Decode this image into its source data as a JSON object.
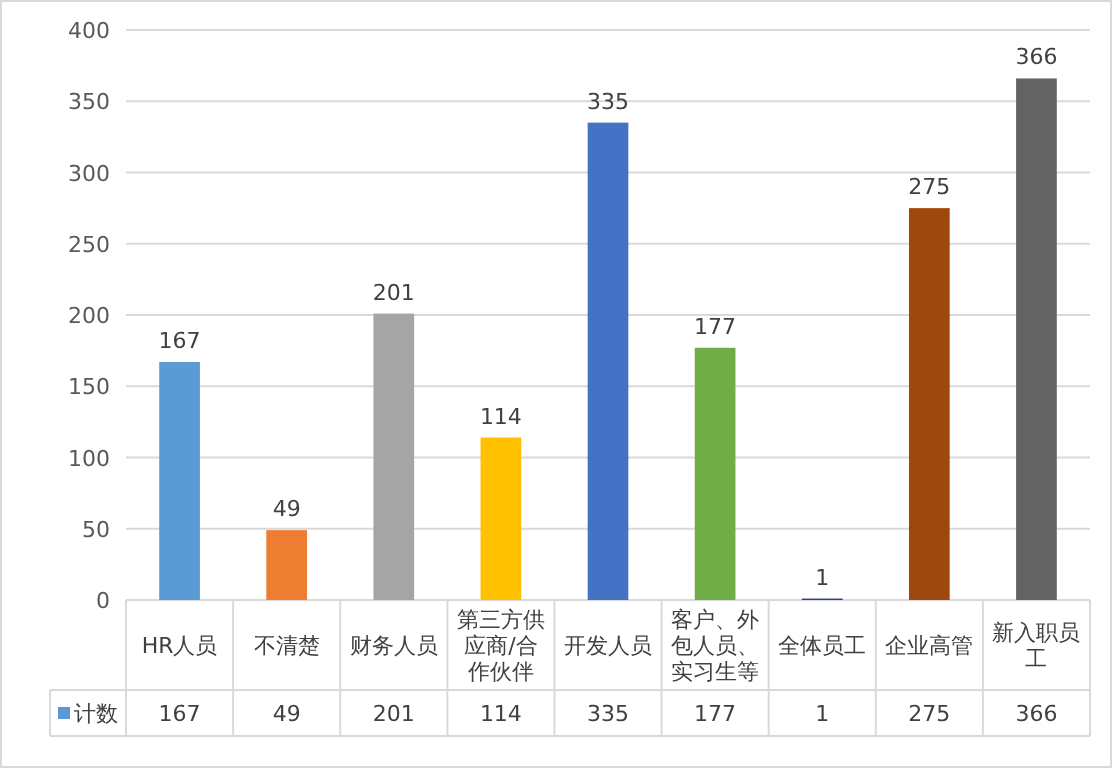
{
  "chart_data": {
    "type": "bar",
    "categories": [
      "HR人员",
      "不清楚",
      "财务人员",
      "第三方供应商/合作伙伴",
      "开发人员",
      "客户、外包人员、实习生等",
      "全体员工",
      "企业高管",
      "新入职员工"
    ],
    "series": [
      {
        "name": "计数",
        "color": "#5b9bd5",
        "colors": [
          "#5b9bd5",
          "#ed7d31",
          "#a5a5a5",
          "#ffc000",
          "#4472c4",
          "#70ad47",
          "#264478",
          "#9e480e",
          "#636363"
        ],
        "values": [
          167,
          49,
          201,
          114,
          335,
          177,
          1,
          275,
          366
        ],
        "value_labels": [
          "167",
          "49",
          "201",
          "114",
          "335",
          "177",
          "1",
          "275",
          "366"
        ]
      }
    ],
    "ylim": [
      0,
      400
    ],
    "yticks": [
      0,
      50,
      100,
      150,
      200,
      250,
      300,
      350,
      400
    ],
    "grid": "y",
    "data_labels": true,
    "legend": "bottom left"
  }
}
